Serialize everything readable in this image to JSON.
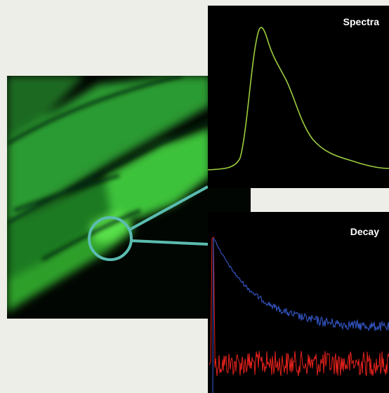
{
  "panels": [
    {
      "label": "Spectra"
    },
    {
      "label": "Decay"
    }
  ]
}
